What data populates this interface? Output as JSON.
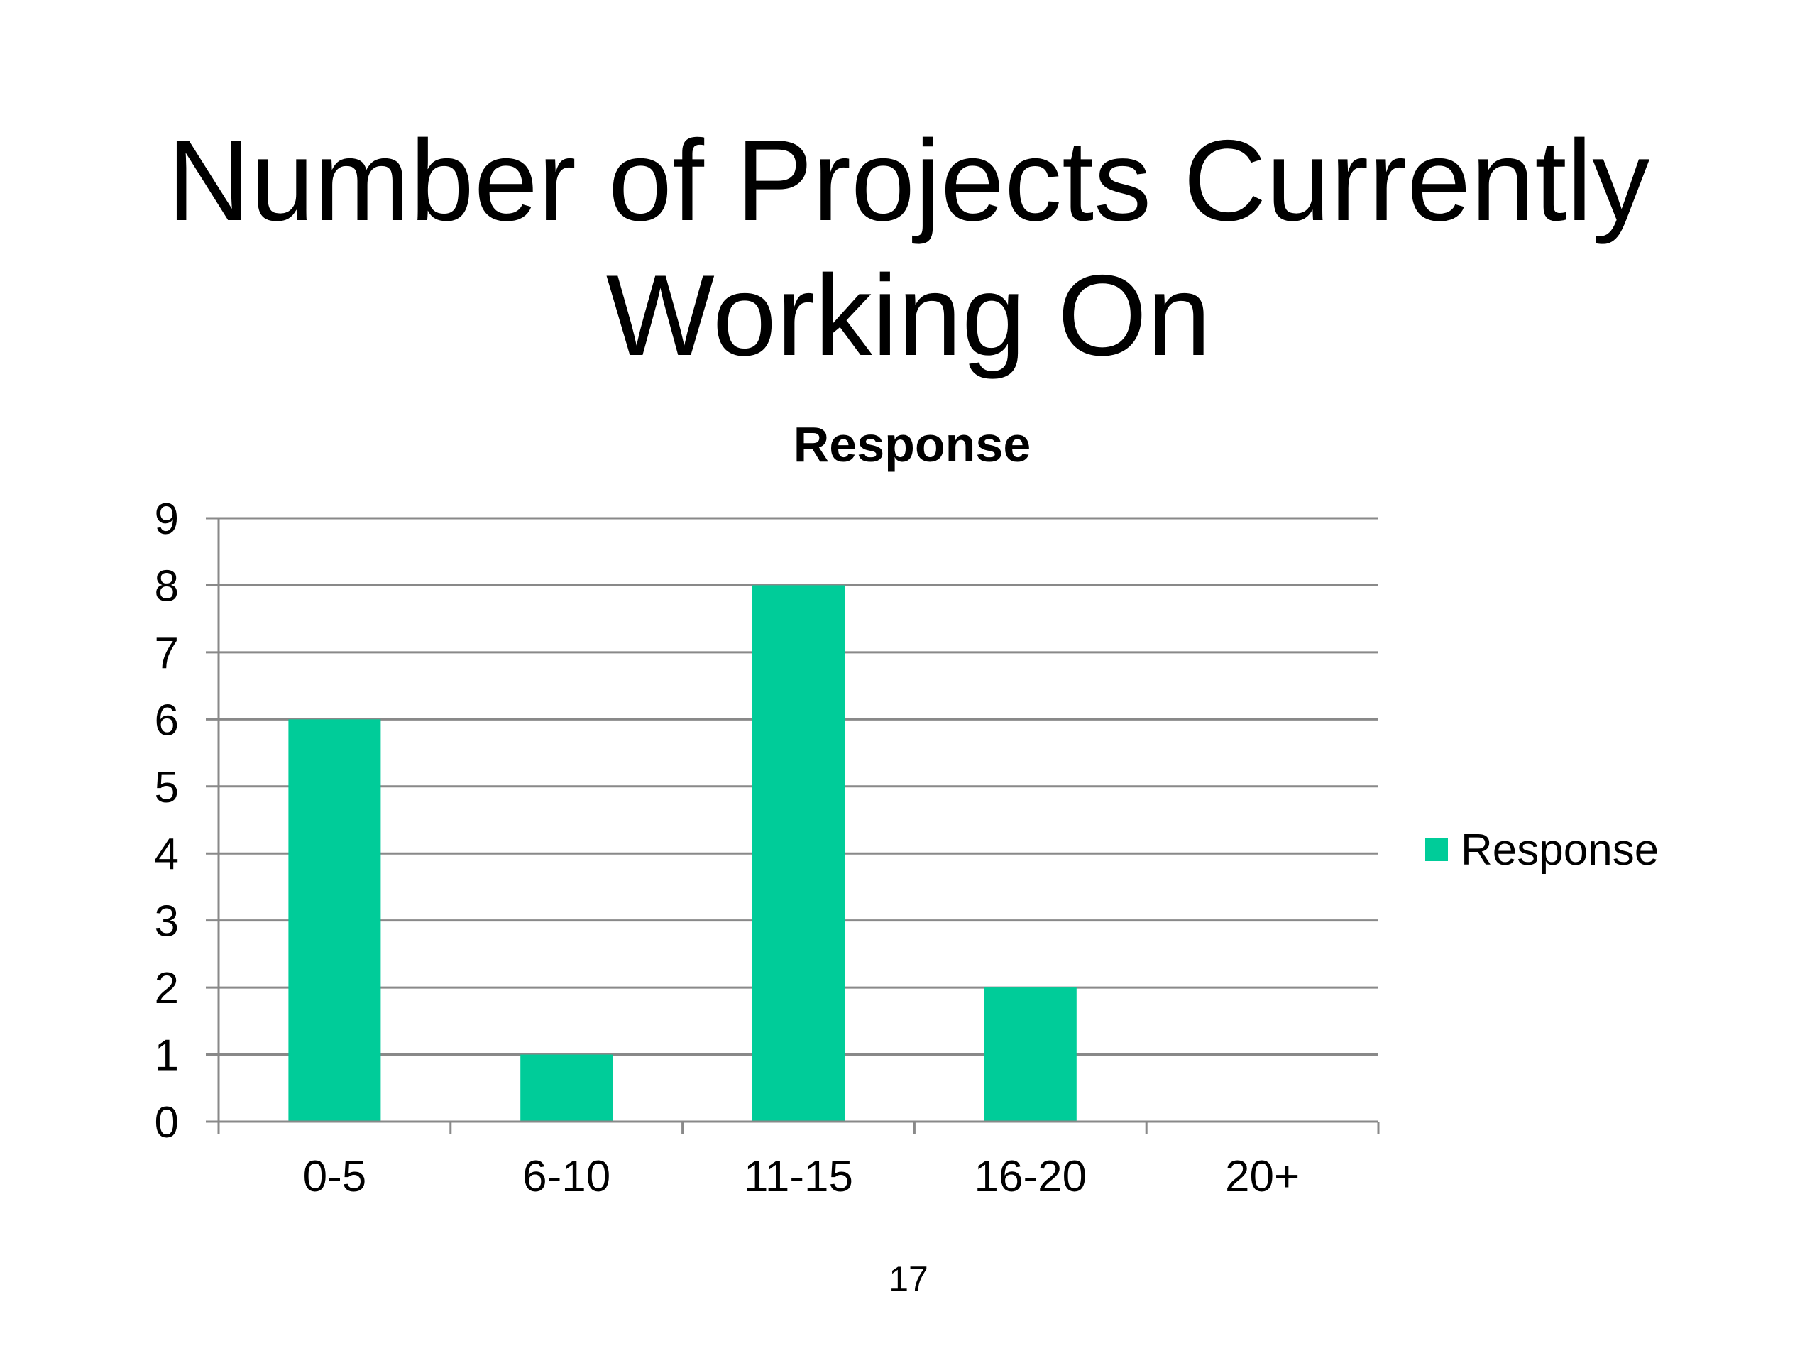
{
  "slide": {
    "title_line1": "Number of Projects Currently",
    "title_line2": "Working On",
    "page_number": "17"
  },
  "colors": {
    "bar": "#00cc99",
    "grid": "#898989",
    "text": "#000000"
  },
  "chart_data": {
    "type": "bar",
    "title": "Response",
    "categories": [
      "0-5",
      "6-10",
      "11-15",
      "16-20",
      "20+"
    ],
    "series": [
      {
        "name": "Response",
        "values": [
          6,
          1,
          8,
          2,
          0
        ]
      }
    ],
    "ylim": [
      0,
      9
    ],
    "yticks": [
      0,
      1,
      2,
      3,
      4,
      5,
      6,
      7,
      8,
      9
    ],
    "grid": true,
    "legend": "right"
  }
}
